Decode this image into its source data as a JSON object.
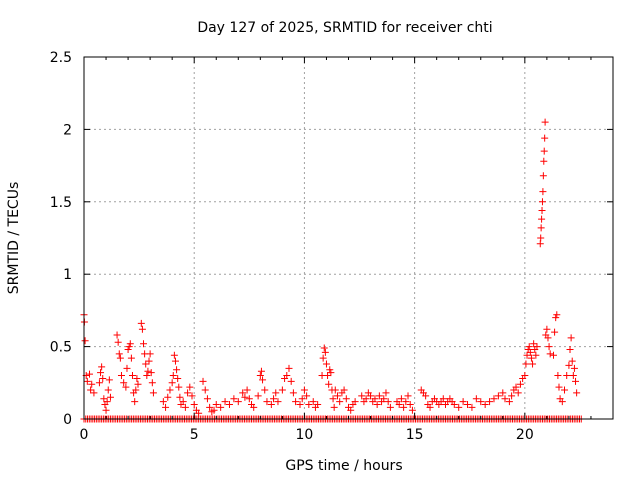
{
  "chart_data": {
    "type": "scatter",
    "title": "Day 127 of 2025, SRMTID for receiver chti",
    "xlabel": "GPS time / hours",
    "ylabel": "SRMTID / TECUs",
    "xlim": [
      0,
      24
    ],
    "ylim": [
      0,
      2.5
    ],
    "x_ticks": [
      0,
      5,
      10,
      15,
      20
    ],
    "x_tick_labels": [
      "0",
      "5",
      "10",
      "15",
      "20"
    ],
    "y_ticks": [
      0,
      0.5,
      1,
      1.5,
      2,
      2.5
    ],
    "y_tick_labels": [
      "0",
      "0.5",
      "1",
      "1.5",
      "2",
      "2.5"
    ],
    "grid": true,
    "marker": "+",
    "color": "#ff0000",
    "series": [
      {
        "name": "SRMTID",
        "points": [
          [
            0.0,
            0.72
          ],
          [
            0.02,
            0.67
          ],
          [
            0.05,
            0.54
          ],
          [
            0.1,
            0.3
          ],
          [
            0.15,
            0.26
          ],
          [
            0.25,
            0.31
          ],
          [
            0.3,
            0.2
          ],
          [
            0.35,
            0.24
          ],
          [
            0.45,
            0.18
          ],
          [
            0.7,
            0.25
          ],
          [
            0.75,
            0.32
          ],
          [
            0.8,
            0.36
          ],
          [
            0.85,
            0.28
          ],
          [
            0.9,
            0.14
          ],
          [
            0.95,
            0.1
          ],
          [
            1.0,
            0.06
          ],
          [
            1.05,
            0.12
          ],
          [
            1.1,
            0.2
          ],
          [
            1.15,
            0.27
          ],
          [
            1.2,
            0.15
          ],
          [
            1.5,
            0.58
          ],
          [
            1.55,
            0.53
          ],
          [
            1.6,
            0.45
          ],
          [
            1.65,
            0.42
          ],
          [
            1.7,
            0.3
          ],
          [
            1.8,
            0.25
          ],
          [
            1.9,
            0.22
          ],
          [
            1.95,
            0.35
          ],
          [
            2.0,
            0.48
          ],
          [
            2.05,
            0.5
          ],
          [
            2.1,
            0.52
          ],
          [
            2.15,
            0.42
          ],
          [
            2.2,
            0.3
          ],
          [
            2.25,
            0.18
          ],
          [
            2.3,
            0.12
          ],
          [
            2.35,
            0.2
          ],
          [
            2.4,
            0.28
          ],
          [
            2.45,
            0.24
          ],
          [
            2.6,
            0.66
          ],
          [
            2.65,
            0.62
          ],
          [
            2.7,
            0.52
          ],
          [
            2.75,
            0.45
          ],
          [
            2.8,
            0.38
          ],
          [
            2.85,
            0.3
          ],
          [
            2.9,
            0.33
          ],
          [
            2.95,
            0.4
          ],
          [
            3.0,
            0.45
          ],
          [
            3.05,
            0.32
          ],
          [
            3.1,
            0.25
          ],
          [
            3.15,
            0.18
          ],
          [
            3.6,
            0.12
          ],
          [
            3.7,
            0.08
          ],
          [
            3.8,
            0.15
          ],
          [
            3.9,
            0.2
          ],
          [
            4.0,
            0.25
          ],
          [
            4.05,
            0.3
          ],
          [
            4.1,
            0.44
          ],
          [
            4.15,
            0.4
          ],
          [
            4.2,
            0.34
          ],
          [
            4.25,
            0.28
          ],
          [
            4.3,
            0.22
          ],
          [
            4.35,
            0.15
          ],
          [
            4.4,
            0.1
          ],
          [
            4.5,
            0.12
          ],
          [
            4.6,
            0.08
          ],
          [
            4.7,
            0.18
          ],
          [
            4.8,
            0.22
          ],
          [
            4.9,
            0.16
          ],
          [
            5.0,
            0.1
          ],
          [
            5.1,
            0.06
          ],
          [
            5.2,
            0.04
          ],
          [
            5.4,
            0.26
          ],
          [
            5.5,
            0.2
          ],
          [
            5.6,
            0.14
          ],
          [
            5.7,
            0.08
          ],
          [
            5.8,
            0.05
          ],
          [
            5.9,
            0.06
          ],
          [
            6.0,
            0.1
          ],
          [
            6.2,
            0.08
          ],
          [
            6.4,
            0.12
          ],
          [
            6.6,
            0.1
          ],
          [
            6.8,
            0.14
          ],
          [
            7.0,
            0.12
          ],
          [
            7.2,
            0.18
          ],
          [
            7.3,
            0.15
          ],
          [
            7.4,
            0.2
          ],
          [
            7.5,
            0.14
          ],
          [
            7.6,
            0.1
          ],
          [
            7.7,
            0.08
          ],
          [
            7.9,
            0.16
          ],
          [
            8.0,
            0.3
          ],
          [
            8.05,
            0.33
          ],
          [
            8.1,
            0.27
          ],
          [
            8.2,
            0.2
          ],
          [
            8.3,
            0.12
          ],
          [
            8.5,
            0.1
          ],
          [
            8.6,
            0.14
          ],
          [
            8.7,
            0.18
          ],
          [
            8.8,
            0.12
          ],
          [
            9.0,
            0.2
          ],
          [
            9.1,
            0.28
          ],
          [
            9.2,
            0.3
          ],
          [
            9.3,
            0.35
          ],
          [
            9.4,
            0.26
          ],
          [
            9.5,
            0.18
          ],
          [
            9.6,
            0.12
          ],
          [
            9.8,
            0.1
          ],
          [
            9.9,
            0.14
          ],
          [
            10.0,
            0.2
          ],
          [
            10.1,
            0.16
          ],
          [
            10.2,
            0.1
          ],
          [
            10.4,
            0.12
          ],
          [
            10.5,
            0.08
          ],
          [
            10.6,
            0.1
          ],
          [
            10.8,
            0.3
          ],
          [
            10.85,
            0.42
          ],
          [
            10.9,
            0.49
          ],
          [
            10.95,
            0.46
          ],
          [
            11.0,
            0.38
          ],
          [
            11.05,
            0.3
          ],
          [
            11.1,
            0.24
          ],
          [
            11.15,
            0.34
          ],
          [
            11.2,
            0.32
          ],
          [
            11.25,
            0.2
          ],
          [
            11.3,
            0.14
          ],
          [
            11.35,
            0.08
          ],
          [
            11.4,
            0.2
          ],
          [
            11.5,
            0.16
          ],
          [
            11.6,
            0.12
          ],
          [
            11.7,
            0.18
          ],
          [
            11.8,
            0.2
          ],
          [
            11.9,
            0.14
          ],
          [
            12.0,
            0.08
          ],
          [
            12.1,
            0.06
          ],
          [
            12.2,
            0.1
          ],
          [
            12.3,
            0.12
          ],
          [
            12.6,
            0.16
          ],
          [
            12.7,
            0.12
          ],
          [
            12.8,
            0.14
          ],
          [
            12.9,
            0.18
          ],
          [
            13.0,
            0.16
          ],
          [
            13.1,
            0.12
          ],
          [
            13.2,
            0.14
          ],
          [
            13.3,
            0.1
          ],
          [
            13.4,
            0.16
          ],
          [
            13.5,
            0.12
          ],
          [
            13.6,
            0.14
          ],
          [
            13.7,
            0.18
          ],
          [
            13.8,
            0.12
          ],
          [
            13.9,
            0.08
          ],
          [
            14.2,
            0.12
          ],
          [
            14.3,
            0.1
          ],
          [
            14.4,
            0.14
          ],
          [
            14.5,
            0.08
          ],
          [
            14.6,
            0.12
          ],
          [
            14.7,
            0.16
          ],
          [
            14.8,
            0.1
          ],
          [
            14.9,
            0.06
          ],
          [
            15.3,
            0.2
          ],
          [
            15.4,
            0.18
          ],
          [
            15.5,
            0.16
          ],
          [
            15.6,
            0.1
          ],
          [
            15.7,
            0.08
          ],
          [
            15.8,
            0.12
          ],
          [
            15.9,
            0.14
          ],
          [
            16.0,
            0.12
          ],
          [
            16.1,
            0.1
          ],
          [
            16.2,
            0.12
          ],
          [
            16.3,
            0.14
          ],
          [
            16.4,
            0.1
          ],
          [
            16.5,
            0.12
          ],
          [
            16.6,
            0.14
          ],
          [
            16.7,
            0.12
          ],
          [
            16.8,
            0.1
          ],
          [
            17.0,
            0.08
          ],
          [
            17.2,
            0.12
          ],
          [
            17.4,
            0.1
          ],
          [
            17.6,
            0.08
          ],
          [
            17.8,
            0.14
          ],
          [
            18.0,
            0.12
          ],
          [
            18.2,
            0.1
          ],
          [
            18.4,
            0.12
          ],
          [
            18.6,
            0.14
          ],
          [
            18.8,
            0.16
          ],
          [
            19.0,
            0.18
          ],
          [
            19.1,
            0.14
          ],
          [
            19.3,
            0.12
          ],
          [
            19.4,
            0.16
          ],
          [
            19.5,
            0.2
          ],
          [
            19.6,
            0.22
          ],
          [
            19.7,
            0.18
          ],
          [
            19.8,
            0.24
          ],
          [
            19.9,
            0.28
          ],
          [
            20.0,
            0.3
          ],
          [
            20.05,
            0.38
          ],
          [
            20.1,
            0.44
          ],
          [
            20.15,
            0.48
          ],
          [
            20.2,
            0.5
          ],
          [
            20.25,
            0.46
          ],
          [
            20.3,
            0.42
          ],
          [
            20.35,
            0.38
          ],
          [
            20.4,
            0.52
          ],
          [
            20.45,
            0.48
          ],
          [
            20.5,
            0.44
          ],
          [
            20.55,
            0.5
          ],
          [
            20.7,
            1.21
          ],
          [
            20.72,
            1.25
          ],
          [
            20.74,
            1.32
          ],
          [
            20.76,
            1.38
          ],
          [
            20.78,
            1.44
          ],
          [
            20.8,
            1.5
          ],
          [
            20.82,
            1.57
          ],
          [
            20.84,
            1.68
          ],
          [
            20.86,
            1.78
          ],
          [
            20.88,
            1.85
          ],
          [
            20.9,
            1.94
          ],
          [
            20.92,
            2.05
          ],
          [
            20.95,
            0.58
          ],
          [
            21.0,
            0.62
          ],
          [
            21.05,
            0.56
          ],
          [
            21.1,
            0.5
          ],
          [
            21.15,
            0.45
          ],
          [
            21.3,
            0.44
          ],
          [
            21.35,
            0.6
          ],
          [
            21.4,
            0.7
          ],
          [
            21.45,
            0.72
          ],
          [
            21.5,
            0.3
          ],
          [
            21.55,
            0.22
          ],
          [
            21.6,
            0.14
          ],
          [
            21.7,
            0.12
          ],
          [
            21.8,
            0.2
          ],
          [
            21.9,
            0.3
          ],
          [
            22.0,
            0.37
          ],
          [
            22.05,
            0.48
          ],
          [
            22.1,
            0.56
          ],
          [
            22.15,
            0.4
          ],
          [
            22.2,
            0.3
          ],
          [
            22.25,
            0.35
          ],
          [
            22.3,
            0.26
          ],
          [
            22.35,
            0.18
          ]
        ],
        "zero_runs": [
          [
            0,
            22.6
          ]
        ]
      }
    ]
  }
}
